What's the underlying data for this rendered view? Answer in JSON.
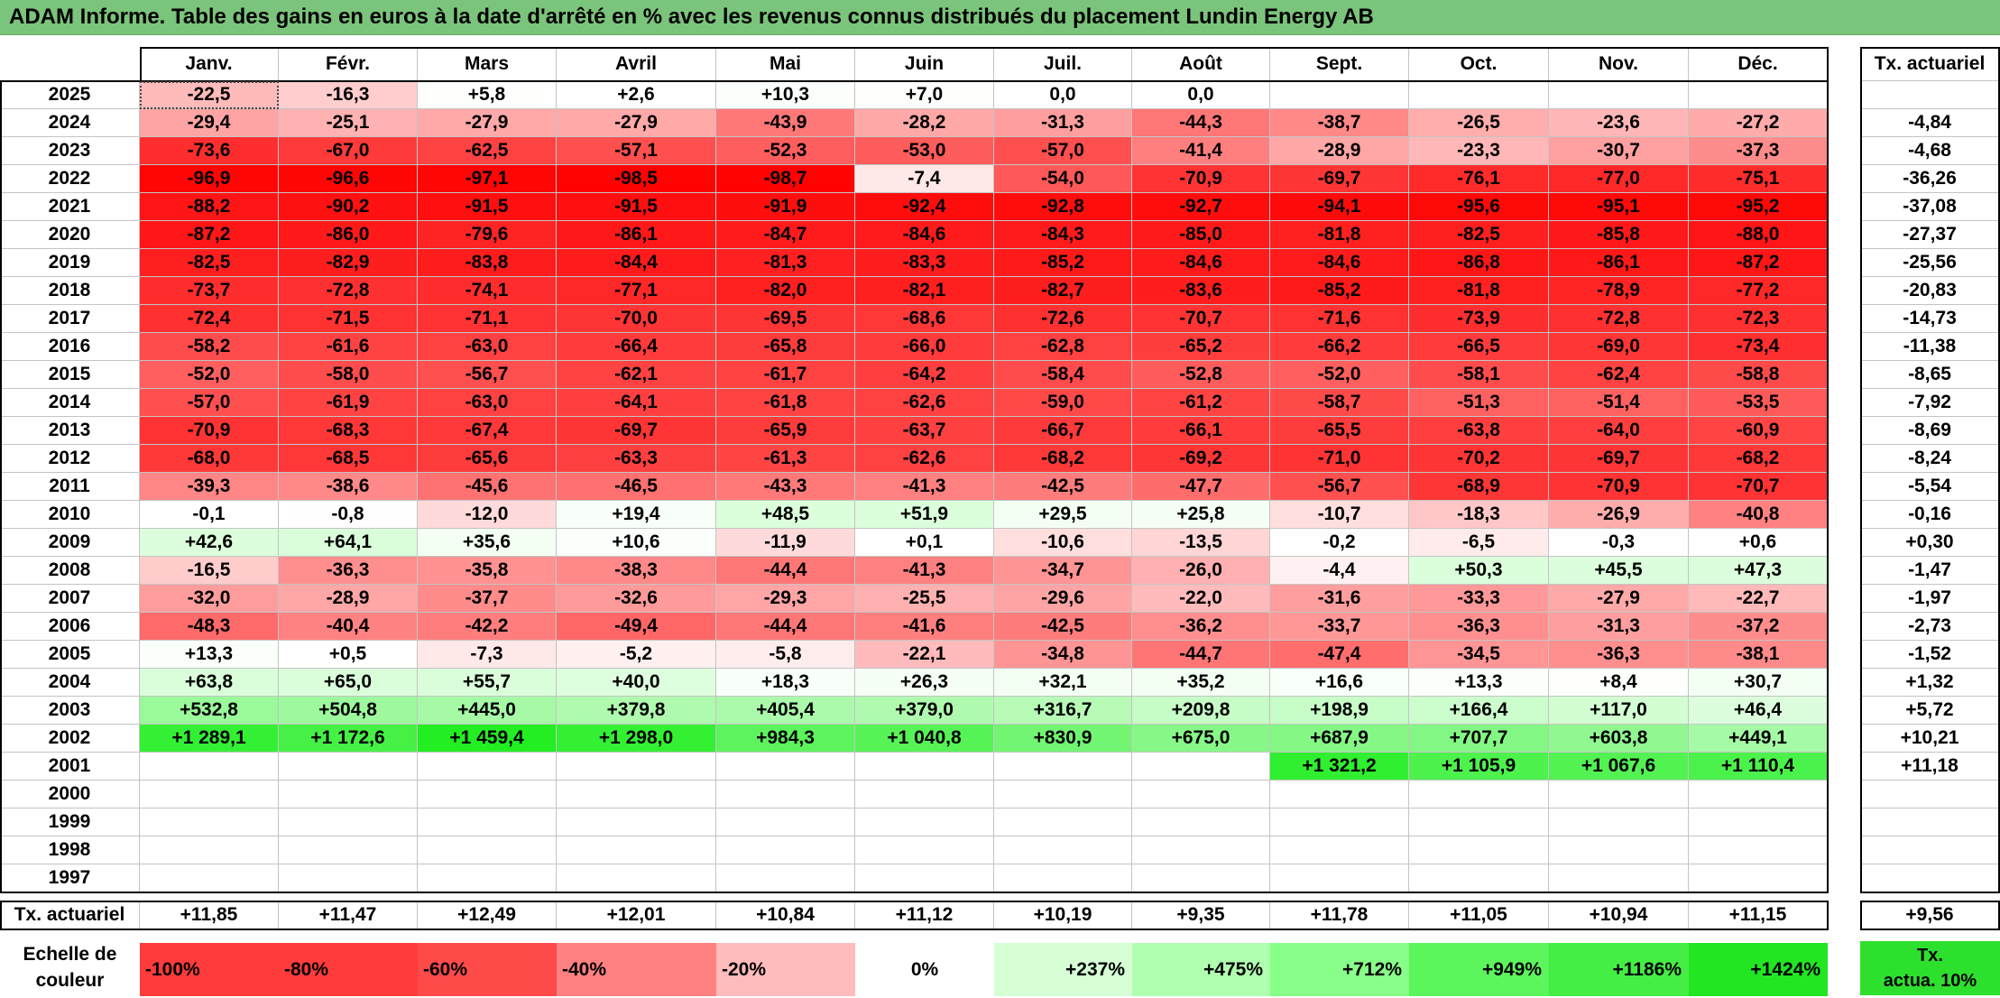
{
  "title": "ADAM Informe. Table des gains en euros à la date d'arrêté en % avec les revenus connus distribués du placement Lundin Energy AB",
  "chart_data": {
    "type": "table",
    "columns": [
      "Janv.",
      "Févr.",
      "Mars",
      "Avril",
      "Mai",
      "Juin",
      "Juil.",
      "Août",
      "Sept.",
      "Oct.",
      "Nov.",
      "Déc."
    ],
    "tx_header": "Tx. actuariel",
    "rows": [
      {
        "year": "2025",
        "values": [
          "-22,5",
          "-16,3",
          "+5,8",
          "+2,6",
          "+10,3",
          "+7,0",
          "0,0",
          "0,0",
          "",
          "",
          "",
          ""
        ],
        "tx": ""
      },
      {
        "year": "2024",
        "values": [
          "-29,4",
          "-25,1",
          "-27,9",
          "-27,9",
          "-43,9",
          "-28,2",
          "-31,3",
          "-44,3",
          "-38,7",
          "-26,5",
          "-23,6",
          "-27,2"
        ],
        "tx": "-4,84"
      },
      {
        "year": "2023",
        "values": [
          "-73,6",
          "-67,0",
          "-62,5",
          "-57,1",
          "-52,3",
          "-53,0",
          "-57,0",
          "-41,4",
          "-28,9",
          "-23,3",
          "-30,7",
          "-37,3"
        ],
        "tx": "-4,68"
      },
      {
        "year": "2022",
        "values": [
          "-96,9",
          "-96,6",
          "-97,1",
          "-98,5",
          "-98,7",
          "-7,4",
          "-54,0",
          "-70,9",
          "-69,7",
          "-76,1",
          "-77,0",
          "-75,1"
        ],
        "tx": "-36,26"
      },
      {
        "year": "2021",
        "values": [
          "-88,2",
          "-90,2",
          "-91,5",
          "-91,5",
          "-91,9",
          "-92,4",
          "-92,8",
          "-92,7",
          "-94,1",
          "-95,6",
          "-95,1",
          "-95,2"
        ],
        "tx": "-37,08"
      },
      {
        "year": "2020",
        "values": [
          "-87,2",
          "-86,0",
          "-79,6",
          "-86,1",
          "-84,7",
          "-84,6",
          "-84,3",
          "-85,0",
          "-81,8",
          "-82,5",
          "-85,8",
          "-88,0"
        ],
        "tx": "-27,37"
      },
      {
        "year": "2019",
        "values": [
          "-82,5",
          "-82,9",
          "-83,8",
          "-84,4",
          "-81,3",
          "-83,3",
          "-85,2",
          "-84,6",
          "-84,6",
          "-86,8",
          "-86,1",
          "-87,2"
        ],
        "tx": "-25,56"
      },
      {
        "year": "2018",
        "values": [
          "-73,7",
          "-72,8",
          "-74,1",
          "-77,1",
          "-82,0",
          "-82,1",
          "-82,7",
          "-83,6",
          "-85,2",
          "-81,8",
          "-78,9",
          "-77,2"
        ],
        "tx": "-20,83"
      },
      {
        "year": "2017",
        "values": [
          "-72,4",
          "-71,5",
          "-71,1",
          "-70,0",
          "-69,5",
          "-68,6",
          "-72,6",
          "-70,7",
          "-71,6",
          "-73,9",
          "-72,8",
          "-72,3"
        ],
        "tx": "-14,73"
      },
      {
        "year": "2016",
        "values": [
          "-58,2",
          "-61,6",
          "-63,0",
          "-66,4",
          "-65,8",
          "-66,0",
          "-62,8",
          "-65,2",
          "-66,2",
          "-66,5",
          "-69,0",
          "-73,4"
        ],
        "tx": "-11,38"
      },
      {
        "year": "2015",
        "values": [
          "-52,0",
          "-58,0",
          "-56,7",
          "-62,1",
          "-61,7",
          "-64,2",
          "-58,4",
          "-52,8",
          "-52,0",
          "-58,1",
          "-62,4",
          "-58,8"
        ],
        "tx": "-8,65"
      },
      {
        "year": "2014",
        "values": [
          "-57,0",
          "-61,9",
          "-63,0",
          "-64,1",
          "-61,8",
          "-62,6",
          "-59,0",
          "-61,2",
          "-58,7",
          "-51,3",
          "-51,4",
          "-53,5"
        ],
        "tx": "-7,92"
      },
      {
        "year": "2013",
        "values": [
          "-70,9",
          "-68,3",
          "-67,4",
          "-69,7",
          "-65,9",
          "-63,7",
          "-66,7",
          "-66,1",
          "-65,5",
          "-63,8",
          "-64,0",
          "-60,9"
        ],
        "tx": "-8,69"
      },
      {
        "year": "2012",
        "values": [
          "-68,0",
          "-68,5",
          "-65,6",
          "-63,3",
          "-61,3",
          "-62,6",
          "-68,2",
          "-69,2",
          "-71,0",
          "-70,2",
          "-69,7",
          "-68,2"
        ],
        "tx": "-8,24"
      },
      {
        "year": "2011",
        "values": [
          "-39,3",
          "-38,6",
          "-45,6",
          "-46,5",
          "-43,3",
          "-41,3",
          "-42,5",
          "-47,7",
          "-56,7",
          "-68,9",
          "-70,9",
          "-70,7"
        ],
        "tx": "-5,54"
      },
      {
        "year": "2010",
        "values": [
          "-0,1",
          "-0,8",
          "-12,0",
          "+19,4",
          "+48,5",
          "+51,9",
          "+29,5",
          "+25,8",
          "-10,7",
          "-18,3",
          "-26,9",
          "-40,8"
        ],
        "tx": "-0,16"
      },
      {
        "year": "2009",
        "values": [
          "+42,6",
          "+64,1",
          "+35,6",
          "+10,6",
          "-11,9",
          "+0,1",
          "-10,6",
          "-13,5",
          "-0,2",
          "-6,5",
          "-0,3",
          "+0,6"
        ],
        "tx": "+0,30"
      },
      {
        "year": "2008",
        "values": [
          "-16,5",
          "-36,3",
          "-35,8",
          "-38,3",
          "-44,4",
          "-41,3",
          "-34,7",
          "-26,0",
          "-4,4",
          "+50,3",
          "+45,5",
          "+47,3"
        ],
        "tx": "-1,47"
      },
      {
        "year": "2007",
        "values": [
          "-32,0",
          "-28,9",
          "-37,7",
          "-32,6",
          "-29,3",
          "-25,5",
          "-29,6",
          "-22,0",
          "-31,6",
          "-33,3",
          "-27,9",
          "-22,7"
        ],
        "tx": "-1,97"
      },
      {
        "year": "2006",
        "values": [
          "-48,3",
          "-40,4",
          "-42,2",
          "-49,4",
          "-44,4",
          "-41,6",
          "-42,5",
          "-36,2",
          "-33,7",
          "-36,3",
          "-31,3",
          "-37,2"
        ],
        "tx": "-2,73"
      },
      {
        "year": "2005",
        "values": [
          "+13,3",
          "+0,5",
          "-7,3",
          "-5,2",
          "-5,8",
          "-22,1",
          "-34,8",
          "-44,7",
          "-47,4",
          "-34,5",
          "-36,3",
          "-38,1"
        ],
        "tx": "-1,52"
      },
      {
        "year": "2004",
        "values": [
          "+63,8",
          "+65,0",
          "+55,7",
          "+40,0",
          "+18,3",
          "+26,3",
          "+32,1",
          "+35,2",
          "+16,6",
          "+13,3",
          "+8,4",
          "+30,7"
        ],
        "tx": "+1,32"
      },
      {
        "year": "2003",
        "values": [
          "+532,8",
          "+504,8",
          "+445,0",
          "+379,8",
          "+405,4",
          "+379,0",
          "+316,7",
          "+209,8",
          "+198,9",
          "+166,4",
          "+117,0",
          "+46,4"
        ],
        "tx": "+5,72"
      },
      {
        "year": "2002",
        "values": [
          "+1 289,1",
          "+1 172,6",
          "+1 459,4",
          "+1 298,0",
          "+984,3",
          "+1 040,8",
          "+830,9",
          "+675,0",
          "+687,9",
          "+707,7",
          "+603,8",
          "+449,1"
        ],
        "tx": "+10,21"
      },
      {
        "year": "2001",
        "values": [
          "",
          "",
          "",
          "",
          "",
          "",
          "",
          "",
          "+1 321,2",
          "+1 105,9",
          "+1 067,6",
          "+1 110,4"
        ],
        "tx": "+11,18"
      },
      {
        "year": "2000",
        "values": [
          "",
          "",
          "",
          "",
          "",
          "",
          "",
          "",
          "",
          "",
          "",
          ""
        ],
        "tx": ""
      },
      {
        "year": "1999",
        "values": [
          "",
          "",
          "",
          "",
          "",
          "",
          "",
          "",
          "",
          "",
          "",
          ""
        ],
        "tx": ""
      },
      {
        "year": "1998",
        "values": [
          "",
          "",
          "",
          "",
          "",
          "",
          "",
          "",
          "",
          "",
          "",
          ""
        ],
        "tx": ""
      },
      {
        "year": "1997",
        "values": [
          "",
          "",
          "",
          "",
          "",
          "",
          "",
          "",
          "",
          "",
          "",
          ""
        ],
        "tx": ""
      }
    ],
    "summary_row": {
      "label": "Tx. actuariel",
      "values": [
        "+11,85",
        "+11,47",
        "+12,49",
        "+12,01",
        "+10,84",
        "+11,12",
        "+10,19",
        "+9,35",
        "+11,78",
        "+11,05",
        "+10,94",
        "+11,15"
      ],
      "tx": "+9,56"
    },
    "legend": {
      "label_line1": "Echelle de",
      "label_line2": "couleur",
      "items": [
        "-100%",
        "-80%",
        "-60%",
        "-40%",
        "-20%",
        "0%",
        "+237%",
        "+475%",
        "+712%",
        "+949%",
        "+1186%",
        "+1424%"
      ],
      "tx_line1": "Tx.",
      "tx_line2": "actua. 10%"
    },
    "colors": {
      "title_bg": "#7bc47b",
      "max_negative": "#ff0000",
      "max_positive": "#22ee22",
      "neutral": "#ffffff"
    }
  }
}
